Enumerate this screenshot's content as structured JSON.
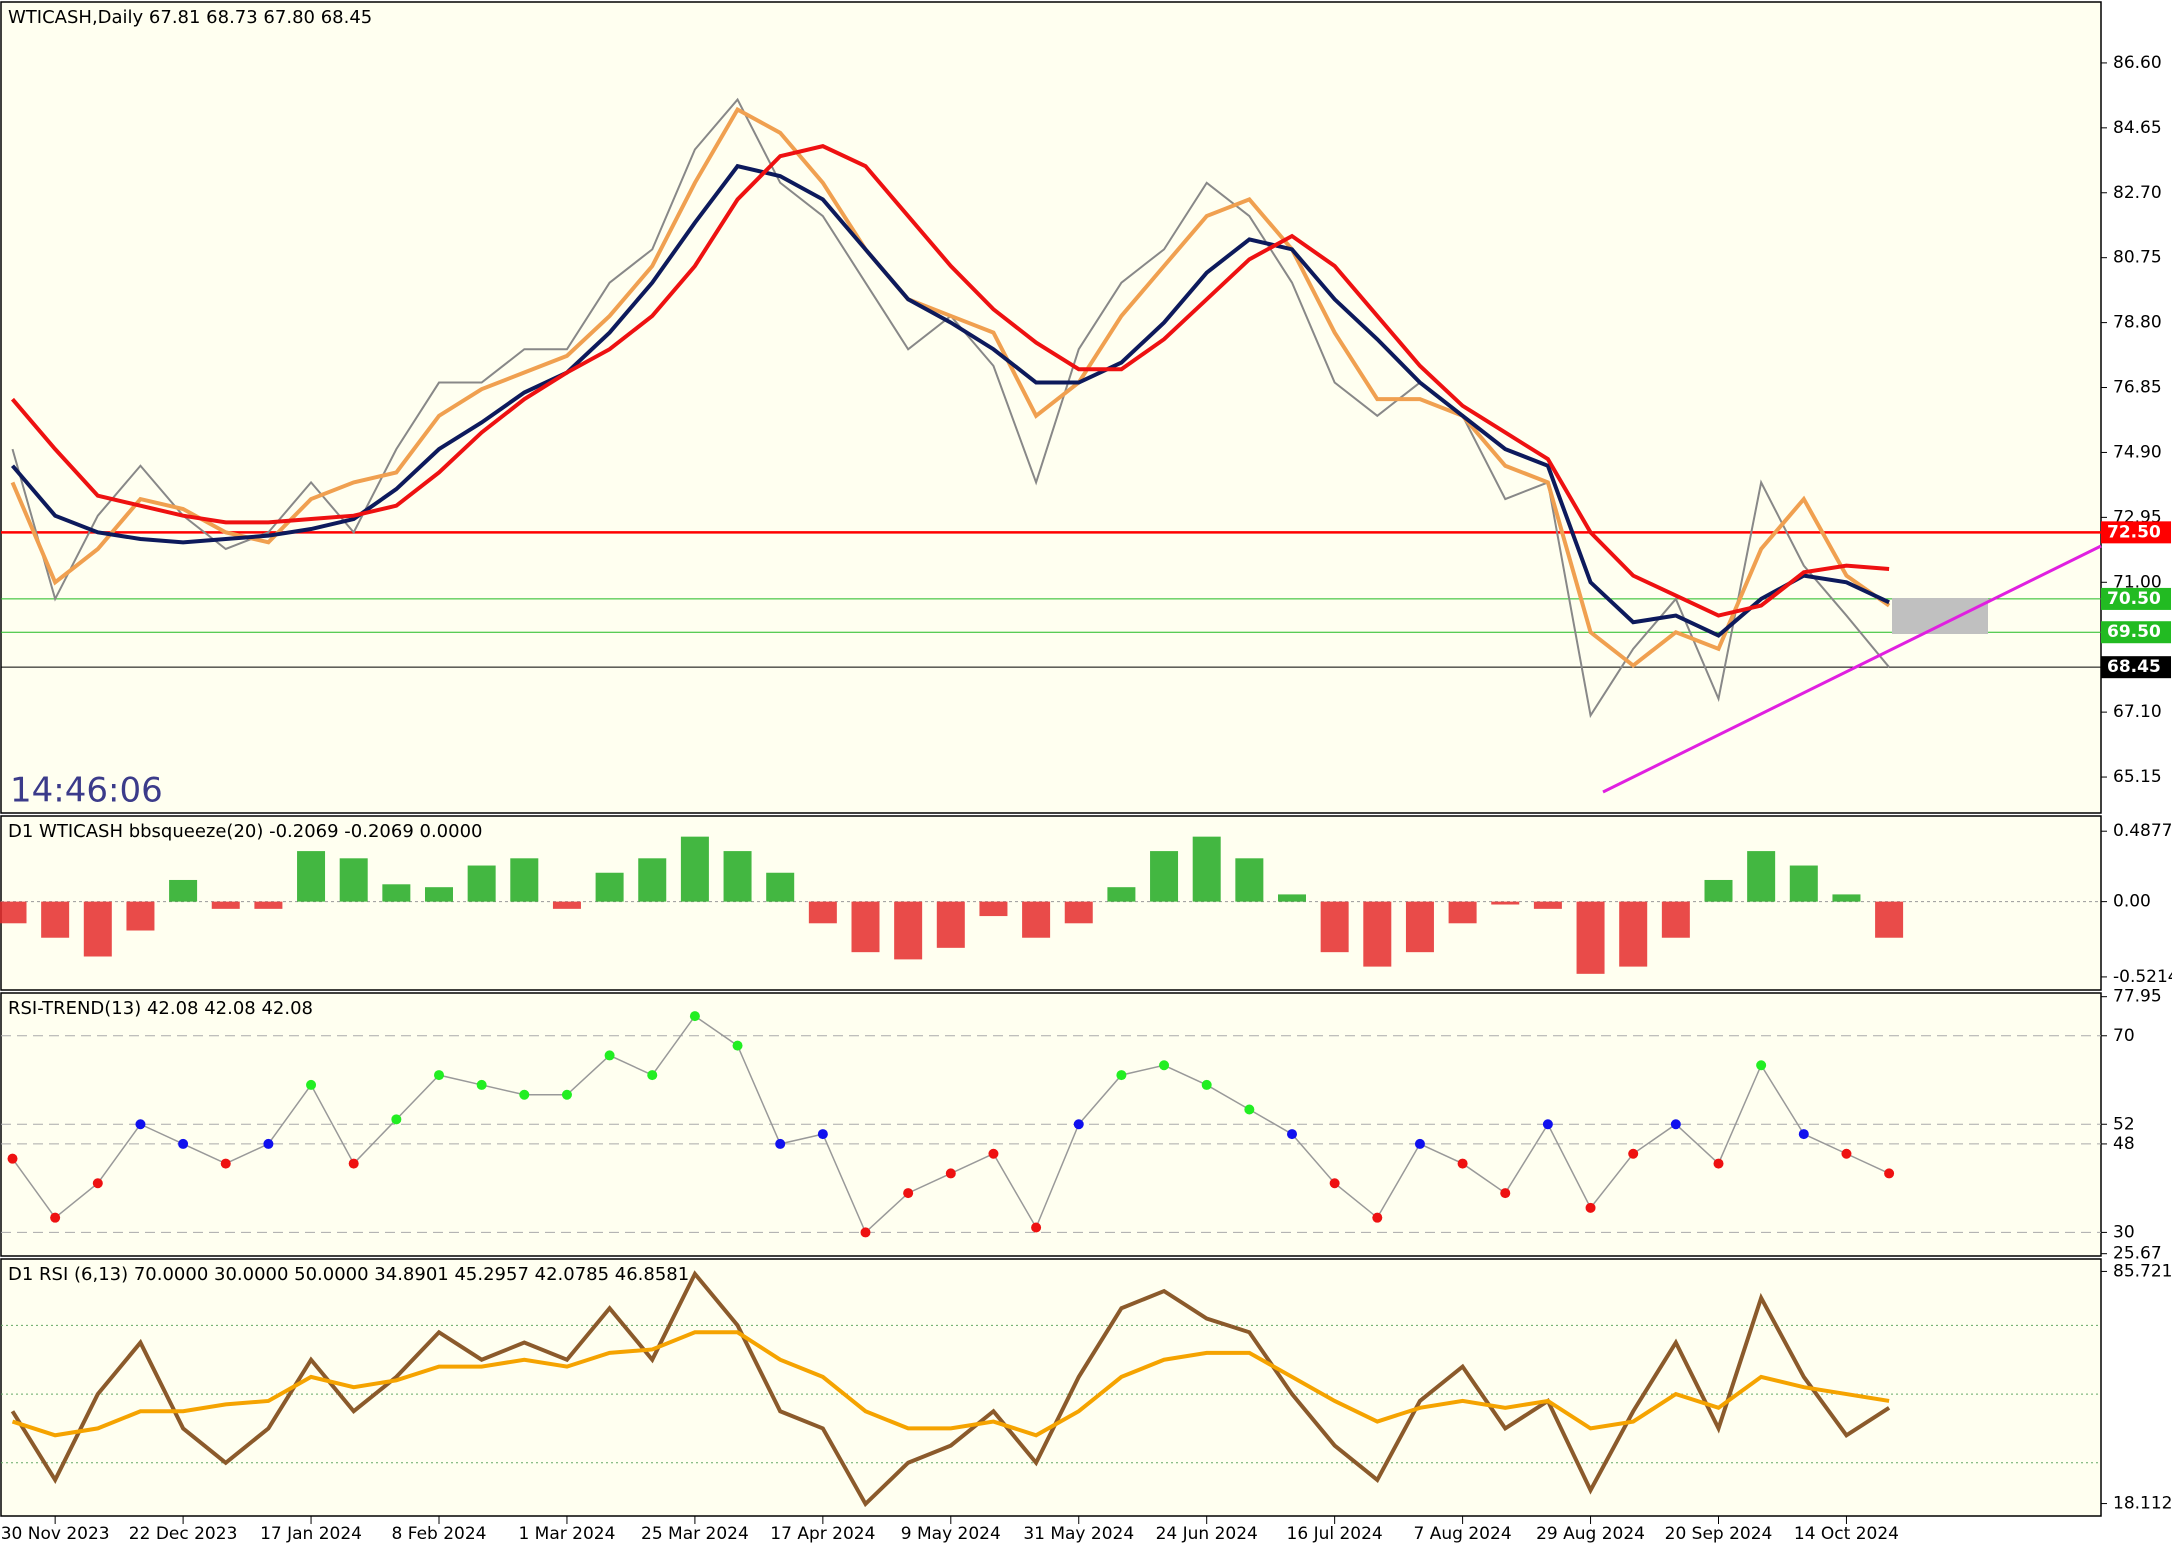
{
  "chart_data": [
    {
      "type": "line",
      "title": "WTICASH,Daily  67.81 68.73 67.80 68.45",
      "clock": "14:46:06",
      "categories": [
        null,
        "30 Nov 2023",
        null,
        null,
        "22 Dec 2023",
        null,
        null,
        "17 Jan 2024",
        null,
        null,
        "8 Feb 2024",
        null,
        null,
        "1 Mar 2024",
        null,
        null,
        "25 Mar 2024",
        null,
        null,
        "17 Apr 2024",
        null,
        null,
        "9 May 2024",
        null,
        null,
        "31 May 2024",
        null,
        null,
        "24 Jun 2024",
        null,
        null,
        "16 Jul 2024",
        null,
        null,
        "7 Aug 2024",
        null,
        null,
        "29 Aug 2024",
        null,
        null,
        "20 Sep 2024",
        null,
        null,
        "14 Oct 2024",
        null
      ],
      "ylim": [
        64.07,
        88.43
      ],
      "yticks": [
        {
          "value": 65.15,
          "label": "65.15"
        },
        {
          "value": 67.1,
          "label": "67.10"
        },
        {
          "value": 71,
          "label": "71.00"
        },
        {
          "value": 72.95,
          "label": "72.95"
        },
        {
          "value": 74.9,
          "label": "74.90"
        },
        {
          "value": 76.85,
          "label": "76.85"
        },
        {
          "value": 78.8,
          "label": "78.80"
        },
        {
          "value": 80.75,
          "label": "80.75"
        },
        {
          "value": 82.7,
          "label": "82.70"
        },
        {
          "value": 84.65,
          "label": "84.65"
        },
        {
          "value": 86.6,
          "label": "86.60"
        }
      ],
      "levels": [
        {
          "value": 72.5,
          "label": "72.50",
          "color": "#ff0000"
        },
        {
          "value": 70.5,
          "label": "70.50",
          "color": "#22bb22"
        },
        {
          "value": 69.5,
          "label": "69.50",
          "color": "#22bb22"
        },
        {
          "value": 68.45,
          "label": "68.45",
          "color": "#000000"
        }
      ],
      "series": [
        {
          "color": "#888888",
          "values": [
            75.0,
            70.5,
            73.0,
            74.5,
            73.0,
            72.0,
            72.5,
            74.0,
            72.5,
            75.0,
            77.0,
            77.0,
            78.0,
            78.0,
            80.0,
            81.0,
            84.0,
            85.5,
            83.0,
            82.0,
            80.0,
            78.0,
            79.0,
            77.5,
            74.0,
            78.0,
            80.0,
            81.0,
            83.0,
            82.0,
            80.0,
            77.0,
            76.0,
            77.0,
            76.0,
            73.5,
            74.0,
            67.0,
            69.0,
            70.5,
            67.5,
            74.0,
            71.5,
            70.0,
            68.45
          ]
        },
        {
          "color": "#f0a050",
          "values": [
            74.0,
            71.0,
            72.0,
            73.5,
            73.2,
            72.5,
            72.2,
            73.5,
            74.0,
            74.3,
            76.0,
            76.8,
            77.3,
            77.8,
            79.0,
            80.5,
            83.0,
            85.2,
            84.5,
            83.0,
            81.0,
            79.5,
            79.0,
            78.5,
            76.0,
            77.0,
            79.0,
            80.5,
            82.0,
            82.5,
            81.0,
            78.5,
            76.5,
            76.5,
            76.0,
            74.5,
            74.0,
            69.5,
            68.5,
            69.5,
            69.0,
            72.0,
            73.5,
            71.2,
            70.3
          ]
        },
        {
          "color": "#0d1a5c",
          "values": [
            74.5,
            73.0,
            72.5,
            72.3,
            72.2,
            72.3,
            72.4,
            72.6,
            72.9,
            73.8,
            75.0,
            75.8,
            76.7,
            77.3,
            78.5,
            80.0,
            81.8,
            83.5,
            83.2,
            82.5,
            81.0,
            79.5,
            78.8,
            78.0,
            77.0,
            77.0,
            77.6,
            78.8,
            80.3,
            81.3,
            81.0,
            79.5,
            78.3,
            77.0,
            76.0,
            75.0,
            74.5,
            71.0,
            69.8,
            70.0,
            69.4,
            70.5,
            71.2,
            71.0,
            70.4
          ]
        },
        {
          "color": "#ee1111",
          "values": [
            76.5,
            75.0,
            73.6,
            73.3,
            73.0,
            72.8,
            72.8,
            72.9,
            73.0,
            73.3,
            74.3,
            75.5,
            76.5,
            77.3,
            78.0,
            79.0,
            80.5,
            82.5,
            83.8,
            84.1,
            83.5,
            82.0,
            80.5,
            79.2,
            78.2,
            77.4,
            77.4,
            78.3,
            79.5,
            80.7,
            81.4,
            80.5,
            79.0,
            77.5,
            76.3,
            75.5,
            74.7,
            72.5,
            71.2,
            70.6,
            70.0,
            70.3,
            71.3,
            71.5,
            71.4
          ]
        }
      ]
    },
    {
      "type": "bar",
      "title": "D1 WTICASH bbsqueeze(20) -0.2069 -0.2069 0.0000",
      "ylim": [
        -0.612,
        0.593
      ],
      "yticks": [
        0.4877,
        {
          "value": 0,
          "label": "0.00"
        },
        -0.5214
      ],
      "up_color": "#22aa22",
      "down_color": "#e52b2b",
      "values": [
        -0.15,
        -0.25,
        -0.38,
        -0.2,
        0.15,
        -0.05,
        -0.05,
        0.35,
        0.3,
        0.12,
        0.1,
        0.25,
        0.3,
        -0.05,
        0.2,
        0.3,
        0.45,
        0.35,
        0.2,
        -0.15,
        -0.35,
        -0.4,
        -0.32,
        -0.1,
        -0.25,
        -0.15,
        0.1,
        0.35,
        0.45,
        0.3,
        0.05,
        -0.35,
        -0.45,
        -0.35,
        -0.15,
        -0.02,
        -0.05,
        -0.5,
        -0.45,
        -0.25,
        0.15,
        0.35,
        0.25,
        0.05,
        -0.25
      ]
    },
    {
      "type": "scatter",
      "title": "RSI-TREND(13) 42.08 42.08 42.08",
      "ylim": [
        25.2,
        78.7
      ],
      "yticks": [
        77.95,
        70,
        52,
        48,
        30,
        25.67
      ],
      "levels": [
        70,
        52,
        48,
        30
      ],
      "up_color": "#22ee22",
      "mid_color": "#1010ee",
      "down_color": "#ee1111",
      "values": [
        45,
        33,
        40,
        52,
        48,
        44,
        48,
        60,
        44,
        53,
        62,
        60,
        58,
        58,
        66,
        62,
        74,
        68,
        48,
        50,
        30,
        38,
        42,
        46,
        31,
        52,
        62,
        64,
        60,
        55,
        50,
        40,
        33,
        48,
        44,
        38,
        52,
        35,
        46,
        52,
        44,
        64,
        50,
        46,
        42
      ]
    },
    {
      "type": "line",
      "title": "D1 RSI  (6,13) 70.0000 30.0000 50.0000 34.8901 45.2957 42.0785 46.8581",
      "ylim": [
        14.49,
        89.34
      ],
      "yticks": [
        85.7215,
        18.1126
      ],
      "levels": [
        70,
        50,
        30
      ],
      "series": [
        {
          "color": "#8b5a2b",
          "values": [
            45,
            25,
            50,
            65,
            40,
            30,
            40,
            60,
            45,
            55,
            68,
            60,
            65,
            60,
            75,
            60,
            85,
            70,
            45,
            40,
            18,
            30,
            35,
            45,
            30,
            55,
            75,
            80,
            72,
            68,
            50,
            35,
            25,
            48,
            58,
            40,
            48,
            22,
            45,
            65,
            40,
            78,
            55,
            38,
            46
          ]
        },
        {
          "color": "#f5a300",
          "values": [
            42,
            38,
            40,
            45,
            45,
            47,
            48,
            55,
            52,
            54,
            58,
            58,
            60,
            58,
            62,
            63,
            68,
            68,
            60,
            55,
            45,
            40,
            40,
            42,
            38,
            45,
            55,
            60,
            62,
            62,
            55,
            48,
            42,
            46,
            48,
            46,
            48,
            40,
            42,
            50,
            46,
            55,
            52,
            50,
            48
          ]
        }
      ]
    }
  ]
}
